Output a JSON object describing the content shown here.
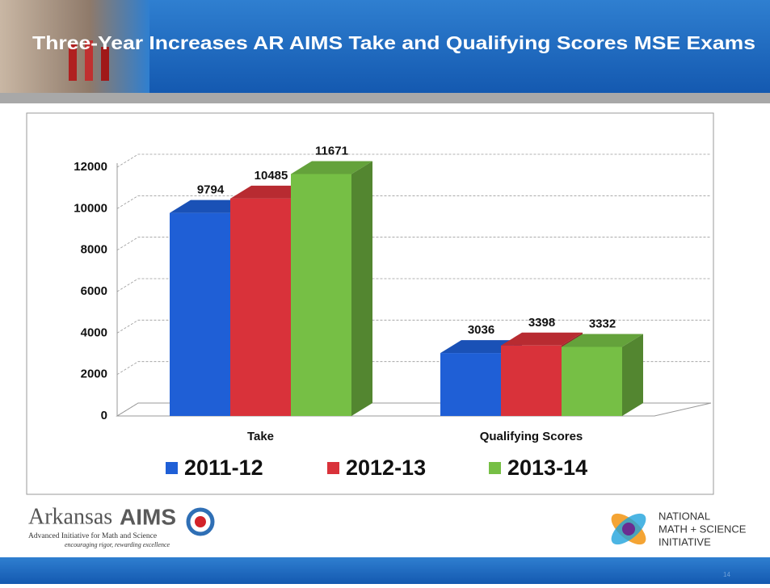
{
  "title": "Three-Year Increases AR AIMS Take and Qualifying Scores MSE Exams",
  "chart_data": {
    "type": "bar3d",
    "categories": [
      "Take",
      "Qualifying Scores"
    ],
    "series": [
      {
        "name": "2011-12",
        "color": "#1f5fd6",
        "values": [
          9794,
          3036
        ]
      },
      {
        "name": "2012-13",
        "color": "#d9323a",
        "values": [
          10485,
          3398
        ]
      },
      {
        "name": "2013-14",
        "color": "#76bf45",
        "values": [
          11671,
          3332
        ]
      }
    ],
    "ylim": [
      0,
      12000
    ],
    "yticks": [
      0,
      2000,
      4000,
      6000,
      8000,
      10000,
      12000
    ],
    "grid": true,
    "legend": "bottom"
  },
  "logos": {
    "aims": {
      "name1": "Arkansas",
      "name2": "AIMS",
      "line1": "Advanced Initiative for Math and Science",
      "line2": "encouraging rigor, rewarding excellence"
    },
    "nmsi": {
      "line1": "NATIONAL",
      "line2": "MATH + SCIENCE",
      "line3": "INITIATIVE"
    }
  },
  "slide_number": "14"
}
